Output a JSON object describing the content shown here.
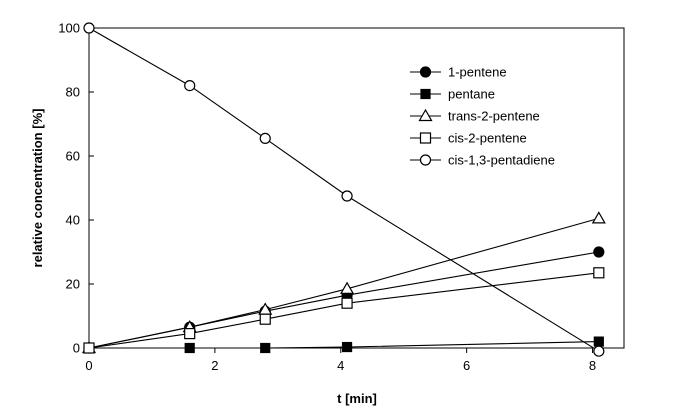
{
  "chart_data": {
    "type": "line",
    "xlabel": "t [min]",
    "ylabel": "relative concentration [%]",
    "xlim": [
      0,
      8.5
    ],
    "ylim": [
      0,
      100
    ],
    "xticks": [
      "0",
      "2",
      "4",
      "6",
      "8"
    ],
    "yticks": [
      "0",
      "20",
      "40",
      "60",
      "80",
      "100"
    ],
    "grid": false,
    "legend_position": "top-right",
    "series": [
      {
        "name": "1-pentene",
        "marker": "filled-circle",
        "x": [
          0,
          1.6,
          2.8,
          4.1,
          8.1
        ],
        "y": [
          0,
          6.5,
          11.5,
          16.5,
          30
        ]
      },
      {
        "name": "pentane",
        "marker": "filled-square",
        "x": [
          0,
          1.6,
          2.8,
          4.1,
          8.1
        ],
        "y": [
          0,
          0,
          0,
          0.3,
          2
        ]
      },
      {
        "name": "trans-2-pentene",
        "marker": "open-triangle",
        "x": [
          0,
          1.6,
          2.8,
          4.1,
          8.1
        ],
        "y": [
          0,
          6.5,
          12,
          18.5,
          40.5
        ]
      },
      {
        "name": "cis-2-pentene",
        "marker": "open-square",
        "x": [
          0,
          1.6,
          2.8,
          4.1,
          8.1
        ],
        "y": [
          0,
          4.5,
          9,
          14,
          23.5
        ]
      },
      {
        "name": "cis-1,3-pentadiene",
        "marker": "open-circle",
        "x": [
          0,
          1.6,
          2.8,
          4.1,
          8.1
        ],
        "y": [
          100,
          82,
          65.5,
          47.5,
          -1
        ]
      }
    ]
  }
}
